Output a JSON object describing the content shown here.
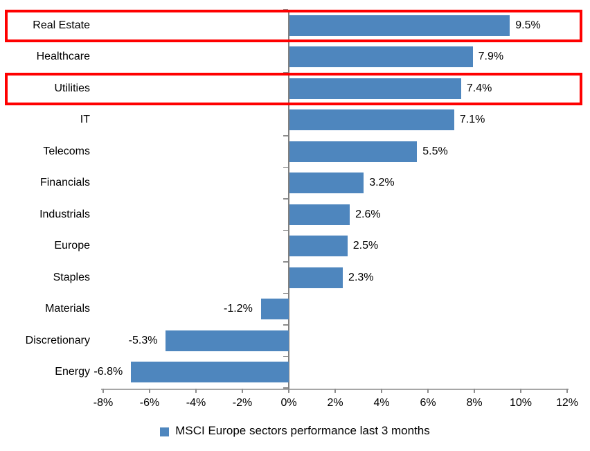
{
  "chart_data": {
    "type": "bar",
    "orientation": "horizontal",
    "title": "",
    "categories": [
      "Real Estate",
      "Healthcare",
      "Utilities",
      "IT",
      "Telecoms",
      "Financials",
      "Industrials",
      "Europe",
      "Staples",
      "Materials",
      "Discretionary",
      "Energy"
    ],
    "values": [
      9.5,
      7.9,
      7.4,
      7.1,
      5.5,
      3.2,
      2.6,
      2.5,
      2.3,
      -1.2,
      -5.3,
      -6.8
    ],
    "value_labels": [
      "9.5%",
      "7.9%",
      "7.4%",
      "7.1%",
      "5.5%",
      "3.2%",
      "2.6%",
      "2.5%",
      "2.3%",
      "-1.2%",
      "-5.3%",
      "-6.8%"
    ],
    "x_tick_values": [
      -8,
      -6,
      -4,
      -2,
      0,
      2,
      4,
      6,
      8,
      10,
      12
    ],
    "x_tick_labels": [
      "-8%",
      "-6%",
      "-4%",
      "-2%",
      "0%",
      "2%",
      "4%",
      "6%",
      "8%",
      "10%",
      "12%"
    ],
    "xlim": [
      -8,
      12
    ],
    "xlabel": "",
    "ylabel": "",
    "grid": false,
    "legend_position": "bottom",
    "legend": [
      {
        "label": "MSCI Europe sectors performance last 3 months",
        "color": "#4E86BE"
      }
    ],
    "bar_color": "#4E86BE",
    "axis_color": "#8C8C8C",
    "zero_line_color": "#808080",
    "text_color": "#000000",
    "highlight_border_color": "#FF0000",
    "highlighted_categories": [
      "Real Estate",
      "Utilities"
    ]
  }
}
